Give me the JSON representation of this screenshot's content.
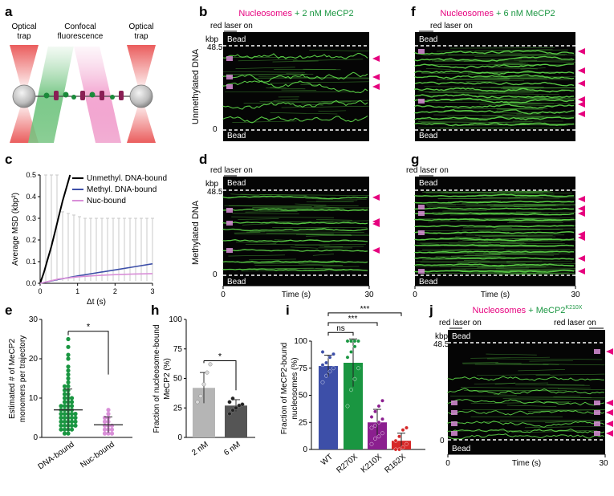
{
  "panel_letters": {
    "a": "a",
    "b": "b",
    "c": "c",
    "d": "d",
    "e": "e",
    "f": "f",
    "g": "g",
    "h": "h",
    "i": "i",
    "j": "j"
  },
  "panel_a": {
    "left_trap": [
      "Optical",
      "trap"
    ],
    "center": [
      "Confocal",
      "fluorescence"
    ],
    "right_trap": [
      "Optical",
      "trap"
    ]
  },
  "panel_b": {
    "title_part1": "Nucleosomes",
    "title_part2": " + 2 nM MeCP2",
    "red_laser": "red laser on",
    "ylabel": "Unmethylated DNA",
    "kbp": "kbp",
    "top_tick": "48.5",
    "bottom_tick": "0",
    "bead_top": "Bead",
    "bead_bottom": "Bead"
  },
  "panel_d": {
    "red_laser": "red laser on",
    "ylabel": "Methylated DNA",
    "kbp": "kbp",
    "top_tick": "48.5",
    "bottom_tick": "0",
    "bead_top": "Bead",
    "bead_bottom": "Bead",
    "x_ticks": [
      "0",
      "30"
    ],
    "xlabel": "Time (s)"
  },
  "panel_f": {
    "title_part1": "Nucleosomes",
    "title_part2": " + 6 nM MeCP2",
    "red_laser": "red laser on",
    "bead_top": "Bead",
    "bead_bottom": "Bead"
  },
  "panel_g": {
    "red_laser": "red laser on",
    "bead_top": "Bead",
    "bead_bottom": "Bead",
    "x_ticks": [
      "0",
      "30"
    ],
    "xlabel": "Time (s)"
  },
  "panel_j": {
    "title_part1": "Nucleosomes",
    "title_part2": " + MeCP2",
    "title_sup": "K210X",
    "red_laser_left": "red laser on",
    "red_laser_right": "red laser on",
    "kbp": "kbp",
    "top_tick": "48.5",
    "bottom_tick": "0",
    "bead_top": "Bead",
    "bead_bottom": "Bead",
    "x_ticks": [
      "0",
      "30"
    ],
    "xlabel": "Time (s)"
  },
  "colors": {
    "magenta": "#e6007e",
    "green": "#1a9641",
    "kymo_green": "#5fdc4a",
    "blue": "#3d4fa8",
    "purple": "#8b1f8f",
    "red": "#d62828",
    "pink": "#d98fd8"
  },
  "chart_data": [
    {
      "id": "c",
      "type": "line",
      "xlabel": "Δt (s)",
      "ylabel": "Average MSD (kbp²)",
      "xlim": [
        0,
        3
      ],
      "ylim": [
        0,
        0.5
      ],
      "x_ticks": [
        "0",
        "1",
        "2",
        "3"
      ],
      "y_ticks": [
        "0.0",
        "0.1",
        "0.2",
        "0.3",
        "0.4",
        "0.5"
      ],
      "series": [
        {
          "name": "Unmethyl. DNA-bound",
          "x": [
            0,
            0.1,
            0.2,
            0.3,
            0.4,
            0.5,
            0.6,
            0.7,
            0.8
          ],
          "values": [
            0,
            0.05,
            0.11,
            0.17,
            0.24,
            0.31,
            0.38,
            0.44,
            0.5
          ]
        },
        {
          "name": "Methyl. DNA-bound",
          "x": [
            0,
            0.5,
            1,
            1.5,
            2,
            2.5,
            3
          ],
          "values": [
            0,
            0.018,
            0.034,
            0.048,
            0.062,
            0.076,
            0.09
          ]
        },
        {
          "name": "Nuc-bound",
          "x": [
            0,
            0.5,
            1,
            1.5,
            2,
            2.5,
            3
          ],
          "values": [
            0,
            0.02,
            0.03,
            0.036,
            0.04,
            0.043,
            0.045
          ]
        }
      ]
    },
    {
      "id": "e",
      "type": "scatter",
      "ylabel": "Estimated # of MeCP2 monomers per trajectory",
      "ylim": [
        0,
        30
      ],
      "y_ticks": [
        "0",
        "10",
        "20",
        "30"
      ],
      "categories": [
        "DNA-bound",
        "Nuc-bound"
      ],
      "means": [
        7,
        3.2
      ],
      "sd": [
        5.3,
        2.0
      ],
      "points": [
        [
          1,
          1,
          2,
          2,
          2,
          2,
          3,
          3,
          3,
          3,
          3,
          4,
          4,
          4,
          4,
          4,
          5,
          5,
          5,
          5,
          5,
          6,
          6,
          6,
          6,
          6,
          7,
          7,
          7,
          7,
          8,
          8,
          8,
          8,
          9,
          9,
          9,
          10,
          10,
          10,
          11,
          11,
          12,
          12,
          13,
          13,
          14,
          15,
          16,
          17,
          18,
          20,
          21,
          23,
          25
        ],
        [
          1,
          1,
          1,
          2,
          2,
          2,
          3,
          3,
          3,
          4,
          4,
          5,
          5,
          6,
          7
        ]
      ],
      "significance": "*"
    },
    {
      "id": "h",
      "type": "bar",
      "ylabel": "Fraction of nucleosome-bound MeCP2 (%)",
      "ylim": [
        0,
        100
      ],
      "y_ticks": [
        "0",
        "25",
        "50",
        "75",
        "100"
      ],
      "categories": [
        "2 nM",
        "6 nM"
      ],
      "values": [
        42,
        27
      ],
      "sd": [
        13,
        5
      ],
      "points": [
        [
          30,
          35,
          45,
          55,
          62
        ],
        [
          20,
          23,
          25,
          27,
          28,
          30,
          33
        ]
      ],
      "significance": "*"
    },
    {
      "id": "i",
      "type": "bar",
      "ylabel": "Fraction of MeCP2-bound nucleosomes (%)",
      "ylim": [
        0,
        100
      ],
      "y_ticks": [
        "0",
        "25",
        "50",
        "75",
        "100"
      ],
      "categories": [
        "WT",
        "R270X",
        "K210X",
        "R162X"
      ],
      "values": [
        77,
        80,
        25,
        8
      ],
      "sd": [
        10,
        22,
        12,
        7
      ],
      "points": [
        [
          62,
          68,
          72,
          75,
          78,
          80,
          85,
          88,
          90
        ],
        [
          40,
          55,
          65,
          75,
          85,
          90,
          95,
          100,
          100,
          100,
          100
        ],
        [
          5,
          10,
          12,
          15,
          20,
          22,
          25,
          28,
          30,
          35,
          40,
          45
        ],
        [
          0,
          0,
          2,
          5,
          8,
          12,
          18,
          20
        ]
      ],
      "comparisons": [
        "ns",
        "***",
        "***"
      ]
    }
  ]
}
